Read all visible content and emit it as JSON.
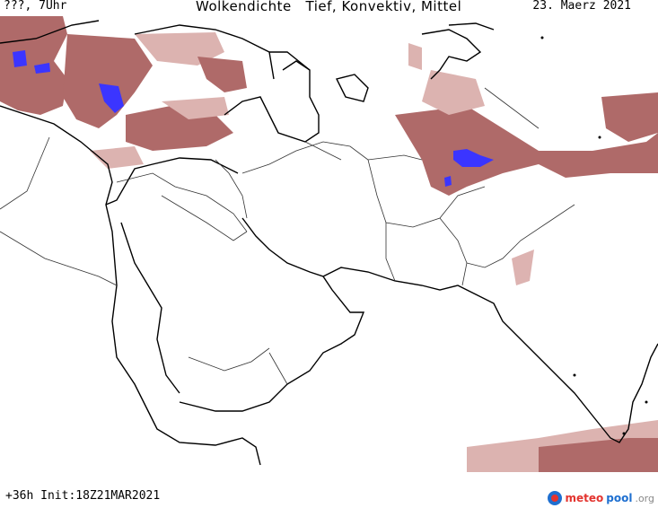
{
  "header": {
    "left": "???, 7Uhr",
    "title": "Wolkendichte   Tief, Konvektiv, Mittel",
    "date": "23. Maerz 2021"
  },
  "footer": {
    "forecast": "+36h  Init:18Z21MAR2021",
    "logo_part1": "meteo",
    "logo_part2": "pool",
    "logo_part3": ".org"
  },
  "colors": {
    "cloud_dense": "#a2514f",
    "cloud_light": "#d7a6a3",
    "convective": "#3b35ff",
    "coastline": "#000000",
    "borders": "#333333"
  }
}
